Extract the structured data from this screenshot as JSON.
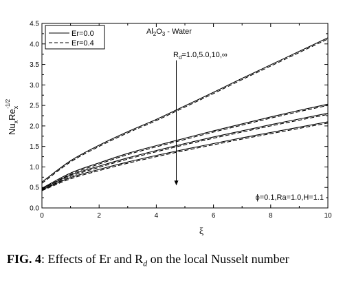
{
  "chart_data": {
    "type": "line",
    "xlabel": "ξ",
    "ylabel": "Nu",
    "ylabel_sub1": "x",
    "ylabel_mid": "Re",
    "ylabel_sub2": "x",
    "ylabel_sup": "-1/2",
    "xlim": [
      0,
      10
    ],
    "ylim": [
      0,
      4.5
    ],
    "xticks": [
      "0",
      "2",
      "4",
      "6",
      "8",
      "10"
    ],
    "yticks": [
      "0.0",
      "0.5",
      "1.0",
      "1.5",
      "2.0",
      "2.5",
      "3.0",
      "3.5",
      "4.0",
      "4.5"
    ],
    "x": [
      0,
      1,
      2,
      3,
      4,
      5,
      6,
      7,
      8,
      9,
      10
    ],
    "legend": [
      {
        "name": "Er=0.0",
        "style": "solid"
      },
      {
        "name": "Er=0.4",
        "style": "dashed"
      }
    ],
    "legend_position": "top-left",
    "series": [
      {
        "style": "solid",
        "values": [
          0.63,
          1.15,
          1.53,
          1.86,
          2.16,
          2.49,
          2.82,
          3.16,
          3.49,
          3.82,
          4.15
        ]
      },
      {
        "style": "dashed",
        "values": [
          0.6,
          1.12,
          1.5,
          1.83,
          2.13,
          2.46,
          2.79,
          3.13,
          3.46,
          3.79,
          4.12
        ]
      },
      {
        "style": "solid",
        "values": [
          0.48,
          0.85,
          1.1,
          1.33,
          1.52,
          1.7,
          1.88,
          2.05,
          2.22,
          2.38,
          2.53
        ]
      },
      {
        "style": "dashed",
        "values": [
          0.46,
          0.82,
          1.07,
          1.3,
          1.49,
          1.67,
          1.85,
          2.02,
          2.19,
          2.35,
          2.5
        ]
      },
      {
        "style": "solid",
        "values": [
          0.46,
          0.8,
          1.02,
          1.22,
          1.4,
          1.57,
          1.73,
          1.88,
          2.03,
          2.17,
          2.31
        ]
      },
      {
        "style": "dashed",
        "values": [
          0.44,
          0.77,
          0.99,
          1.19,
          1.37,
          1.54,
          1.7,
          1.85,
          2.0,
          2.14,
          2.28
        ]
      },
      {
        "style": "solid",
        "values": [
          0.44,
          0.74,
          0.94,
          1.12,
          1.28,
          1.43,
          1.57,
          1.71,
          1.84,
          1.97,
          2.1
        ]
      },
      {
        "style": "dashed",
        "values": [
          0.42,
          0.71,
          0.91,
          1.09,
          1.25,
          1.4,
          1.54,
          1.68,
          1.81,
          1.94,
          2.07
        ]
      }
    ],
    "annotations": {
      "fluid": "Al",
      "fluid_sub": "2",
      "fluid_mid": "O",
      "fluid_sub2": "3",
      "fluid_rest": " - Water",
      "rd_main": "R",
      "rd_sub": "d",
      "rd_values": "=1.0,5.0,10,∞",
      "params": "ϕ=0.1,Ra=1.0,H=1.1"
    },
    "arrow": {
      "x": 4.7,
      "y_from": 3.6,
      "y_to": 0.55,
      "direction": "down"
    }
  },
  "caption": {
    "label": "FIG. 4",
    "text_before": ": Effects of Er and R",
    "sub": "d",
    "text_after": " on the local Nusselt number"
  }
}
